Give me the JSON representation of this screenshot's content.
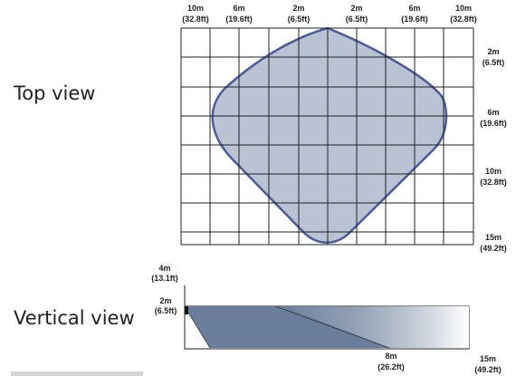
{
  "labels": {
    "top_view": "Top view",
    "vertical_view": "Vertical view"
  },
  "top_view": {
    "top_ticks": [
      [
        "10m",
        "(32.8ft)"
      ],
      [
        "6m",
        "(19.6ft)"
      ],
      [
        "2m",
        "(6.5ft)"
      ],
      [
        "2m",
        "(6.5ft)"
      ],
      [
        "6m",
        "(19.6ft)"
      ],
      [
        "10m",
        "(32.8ft)"
      ]
    ],
    "right_ticks": [
      [
        "2m",
        "(6.5ft)"
      ],
      [
        "6m",
        "(19.6ft)"
      ],
      [
        "10m",
        "(32.8ft)"
      ],
      [
        "15m",
        "(49.2ft)"
      ]
    ],
    "area_fill": "#b9c3d4",
    "area_outline": "#4a5c9a"
  },
  "vertical_view": {
    "left_ticks": [
      [
        "4m",
        "(13.1ft)"
      ],
      [
        "2m",
        "(6.5ft)"
      ]
    ],
    "bottom_ticks": [
      [
        "8m",
        "(26.2ft)"
      ],
      [
        "15m",
        "(49.2ft)"
      ]
    ],
    "beam_dark": "#6a7d9a",
    "beam_light": "#ffffff"
  },
  "footer_bar_color": "#d4d4d4"
}
